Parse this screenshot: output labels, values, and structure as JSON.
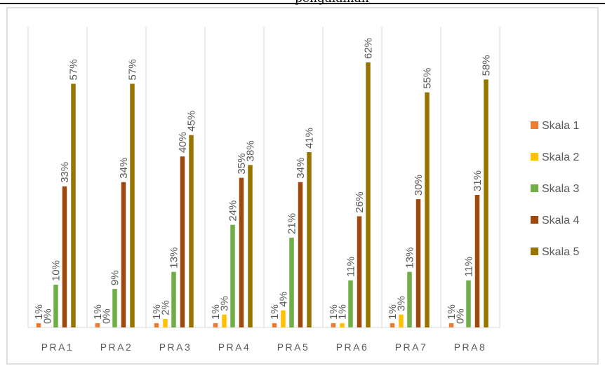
{
  "title_fragment": "pengalaman",
  "chart_data": {
    "type": "bar",
    "categories": [
      "PRA1",
      "PRA2",
      "PRA3",
      "PRA4",
      "PRA5",
      "PRA6",
      "PRA7",
      "PRA8"
    ],
    "series": [
      {
        "name": "Skala 1",
        "color": "#ED7D31",
        "values": [
          1,
          1,
          1,
          1,
          1,
          1,
          1,
          1
        ],
        "labels": [
          "1%",
          "1%",
          "1%",
          "1%",
          "1%",
          "1%",
          "1%",
          "1%"
        ]
      },
      {
        "name": "Skala 2",
        "color": "#FFC000",
        "values": [
          0,
          0,
          2,
          3,
          4,
          1,
          3,
          0
        ],
        "labels": [
          "0%",
          "0%",
          "2%",
          "3%",
          "4%",
          "1%",
          "3%",
          "0%"
        ]
      },
      {
        "name": "Skala 3",
        "color": "#70AD47",
        "values": [
          10,
          9,
          13,
          24,
          21,
          11,
          13,
          11
        ],
        "labels": [
          "10%",
          "9%",
          "13%",
          "24%",
          "21%",
          "11%",
          "13%",
          "11%"
        ]
      },
      {
        "name": "Skala 4",
        "color": "#9E480E",
        "values": [
          33,
          34,
          40,
          35,
          34,
          26,
          30,
          31
        ],
        "labels": [
          "33%",
          "34%",
          "40%",
          "35%",
          "34%",
          "26%",
          "30%",
          "31%"
        ]
      },
      {
        "name": "Skala 5",
        "color": "#997300",
        "values": [
          57,
          57,
          45,
          38,
          41,
          62,
          55,
          58
        ],
        "labels": [
          "57%",
          "57%",
          "45%",
          "38%",
          "41%",
          "62%",
          "55%",
          "58%"
        ]
      }
    ],
    "ylim": [
      0,
      62
    ],
    "grid": "vertical category separators",
    "legend": "right"
  }
}
